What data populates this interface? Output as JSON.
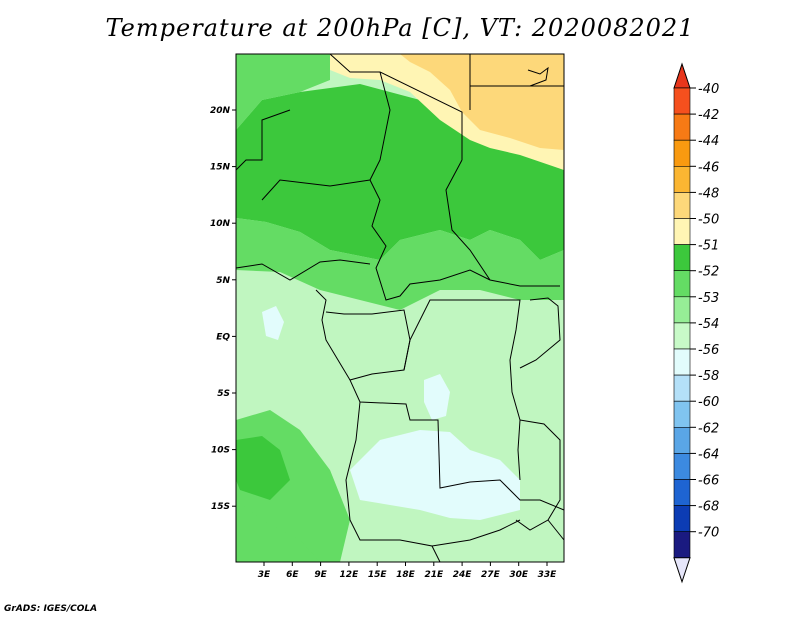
{
  "title": "Temperature at 200hPa [C], VT: 2020082021",
  "credit": "GrADS: IGES/COLA",
  "map": {
    "lat_ticks": [
      "20N",
      "15N",
      "10N",
      "5N",
      "EQ",
      "5S",
      "10S",
      "15S"
    ],
    "lon_ticks": [
      "3E",
      "6E",
      "9E",
      "12E",
      "15E",
      "18E",
      "21E",
      "24E",
      "27E",
      "30E",
      "33E"
    ]
  },
  "colorbar": {
    "labels": [
      "-40",
      "-42",
      "-44",
      "-46",
      "-48",
      "-50",
      "-51",
      "-52",
      "-53",
      "-54",
      "-56",
      "-58",
      "-60",
      "-62",
      "-64",
      "-66",
      "-68",
      "-70"
    ],
    "colors": {
      "top_triangle": "#e8361c",
      "bins": [
        "#f5501e",
        "#f77a15",
        "#f99a10",
        "#fbb632",
        "#fdd87a",
        "#fff5b4",
        "#3cc83c",
        "#64dc64",
        "#96ee96",
        "#c8fac8",
        "#e2fcfc",
        "#b4e0f8",
        "#80c4f0",
        "#5aa6e6",
        "#3c8ae0",
        "#1e64d2",
        "#0c3cb4",
        "#1a1a80"
      ],
      "bottom_triangle": "#e6e6fa"
    }
  }
}
